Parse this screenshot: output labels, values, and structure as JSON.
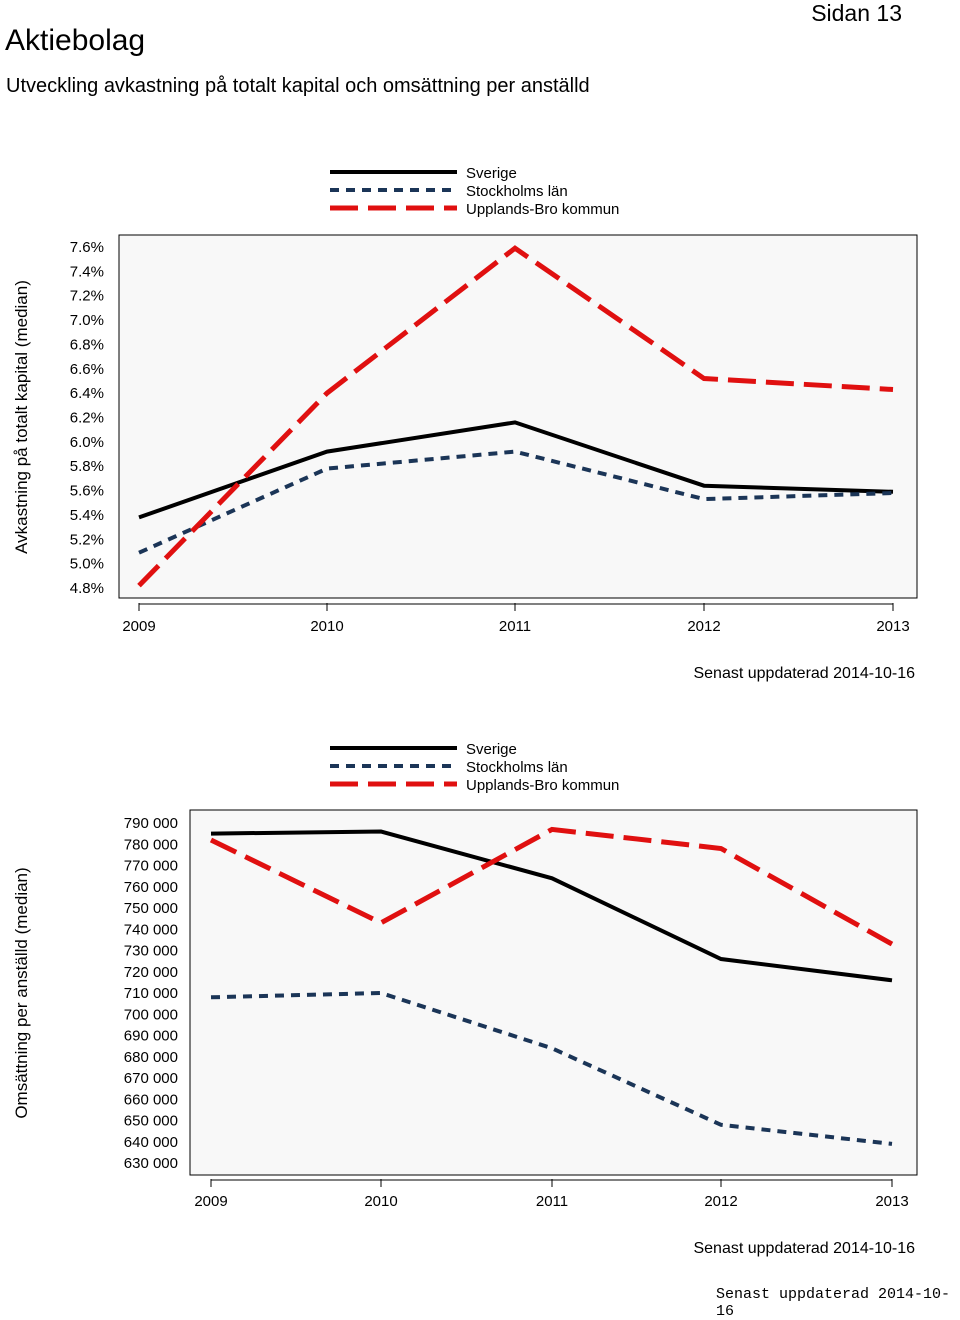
{
  "header": {
    "title": "Aktiebolag",
    "page_label": "Sidan 13",
    "subtitle": "Utveckling avkastning på totalt kapital och omsättning per anställd"
  },
  "footer": {
    "text": "Senast uppdaterad 2014-10-16"
  },
  "series_colors": {
    "Sverige": "#000000",
    "Stockholms län": "#1b3557",
    "Upplands-Bro kommun": "#e01010"
  },
  "chart_data": [
    {
      "type": "line",
      "ylabel": "Avkastning på totalt kapital (median)",
      "x": [
        "2009",
        "2010",
        "2011",
        "2012",
        "2013"
      ],
      "yticks": [
        "4.8%",
        "5.0%",
        "5.2%",
        "5.4%",
        "5.6%",
        "5.8%",
        "6.0%",
        "6.2%",
        "6.4%",
        "6.6%",
        "6.8%",
        "7.0%",
        "7.2%",
        "7.4%",
        "7.6%"
      ],
      "ylim": [
        4.8,
        7.6
      ],
      "legend": [
        "Sverige",
        "Stockholms län",
        "Upplands-Bro kommun"
      ],
      "series": [
        {
          "name": "Sverige",
          "values": [
            5.38,
            5.92,
            6.16,
            5.64,
            5.59
          ]
        },
        {
          "name": "Stockholms län",
          "values": [
            5.09,
            5.78,
            5.92,
            5.53,
            5.58
          ]
        },
        {
          "name": "Upplands-Bro kommun",
          "values": [
            4.82,
            6.4,
            7.59,
            6.52,
            6.43
          ]
        }
      ],
      "updated": "Senast uppdaterad 2014-10-16"
    },
    {
      "type": "line",
      "ylabel": "Omsättning per anställd (median)",
      "x": [
        "2009",
        "2010",
        "2011",
        "2012",
        "2013"
      ],
      "yticks": [
        "630 000",
        "640 000",
        "650 000",
        "660 000",
        "670 000",
        "680 000",
        "690 000",
        "700 000",
        "710 000",
        "720 000",
        "730 000",
        "740 000",
        "750 000",
        "760 000",
        "770 000",
        "780 000",
        "790 000"
      ],
      "ylim": [
        630000,
        790000
      ],
      "legend": [
        "Sverige",
        "Stockholms län",
        "Upplands-Bro kommun"
      ],
      "series": [
        {
          "name": "Sverige",
          "values": [
            785000,
            786000,
            764000,
            726000,
            716000
          ]
        },
        {
          "name": "Stockholms län",
          "values": [
            708000,
            710000,
            684000,
            648000,
            639000
          ]
        },
        {
          "name": "Upplands-Bro kommun",
          "values": [
            782000,
            743000,
            787000,
            778000,
            733000
          ]
        }
      ],
      "updated": "Senast uppdaterad 2014-10-16"
    }
  ]
}
